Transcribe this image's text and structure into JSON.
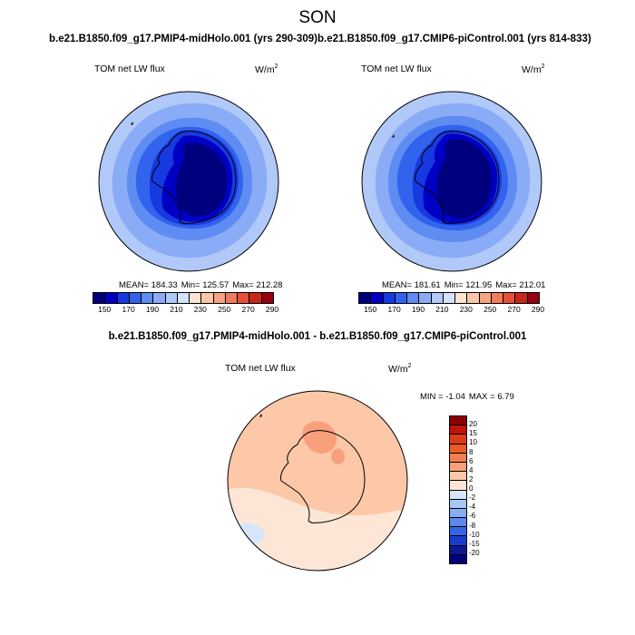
{
  "season": "SON",
  "chart_data": [
    {
      "type": "heatmap",
      "projection": "south polar stereographic",
      "title": "b.e21.B1850.f09_g17.PMIP4-midHolo.001 (yrs 290-309)",
      "field_label": "TOM net LW flux",
      "units_base": "W/m",
      "units_sup": "2",
      "stats": {
        "mean": "MEAN= 184.33",
        "min": "Min= 125.57",
        "max": "Max= 212.28"
      },
      "levels": [
        150,
        170,
        190,
        210,
        230,
        250,
        270,
        290
      ],
      "bands": [
        "<140",
        "140-150",
        "150-160",
        "160-170",
        "170-180",
        "180-190",
        "190-200",
        "200-210"
      ]
    },
    {
      "type": "heatmap",
      "projection": "south polar stereographic",
      "title": "b.e21.B1850.f09_g17.CMIP6-piControl.001 (yrs 814-833)",
      "field_label": "TOM net LW flux",
      "units_base": "W/m",
      "units_sup": "2",
      "stats": {
        "mean": "MEAN= 181.61",
        "min": "Min= 121.95",
        "max": "Max= 212.01"
      },
      "levels": [
        150,
        170,
        190,
        210,
        230,
        250,
        270,
        290
      ],
      "bands": [
        "<140",
        "140-150",
        "150-160",
        "160-170",
        "170-180",
        "180-190",
        "190-200",
        "200-210"
      ]
    },
    {
      "type": "heatmap",
      "projection": "south polar stereographic",
      "title": "b.e21.B1850.f09_g17.PMIP4-midHolo.001 - b.e21.B1850.f09_g17.CMIP6-piControl.001",
      "field_label": "TOM net LW flux",
      "units_base": "W/m",
      "units_sup": "2",
      "stats": {
        "min": "MIN =  -1.04",
        "max": "MAX =   6.79"
      },
      "levels": [
        20,
        15,
        10,
        8,
        6,
        4,
        2,
        0,
        -2,
        -4,
        -6,
        -8,
        -10,
        -15,
        -20
      ],
      "bands": [
        "0 to 2",
        "2 to 4",
        "4 to 6",
        "-2 to 0"
      ]
    }
  ],
  "colors": {
    "abs_scale": [
      "#00007f",
      "#0000c4",
      "#1739e0",
      "#3163ed",
      "#5e8cf3",
      "#8aacf6",
      "#b0c9f8",
      "#d3e1fb",
      "#fde3d1",
      "#fbc7a8",
      "#f8a482",
      "#f17c5c",
      "#e6503a",
      "#c9261a",
      "#96000d"
    ],
    "diff_scale": [
      "#8b0000",
      "#c0140a",
      "#dc3c14",
      "#ec5a28",
      "#f07e50",
      "#f8a07c",
      "#fcc8a8",
      "#fde6d6",
      "#d6e6fa",
      "#a8c8f8",
      "#86aef4",
      "#5a88ec",
      "#3664e6",
      "#1a3ccc",
      "#0c1890",
      "#00007c"
    ]
  }
}
